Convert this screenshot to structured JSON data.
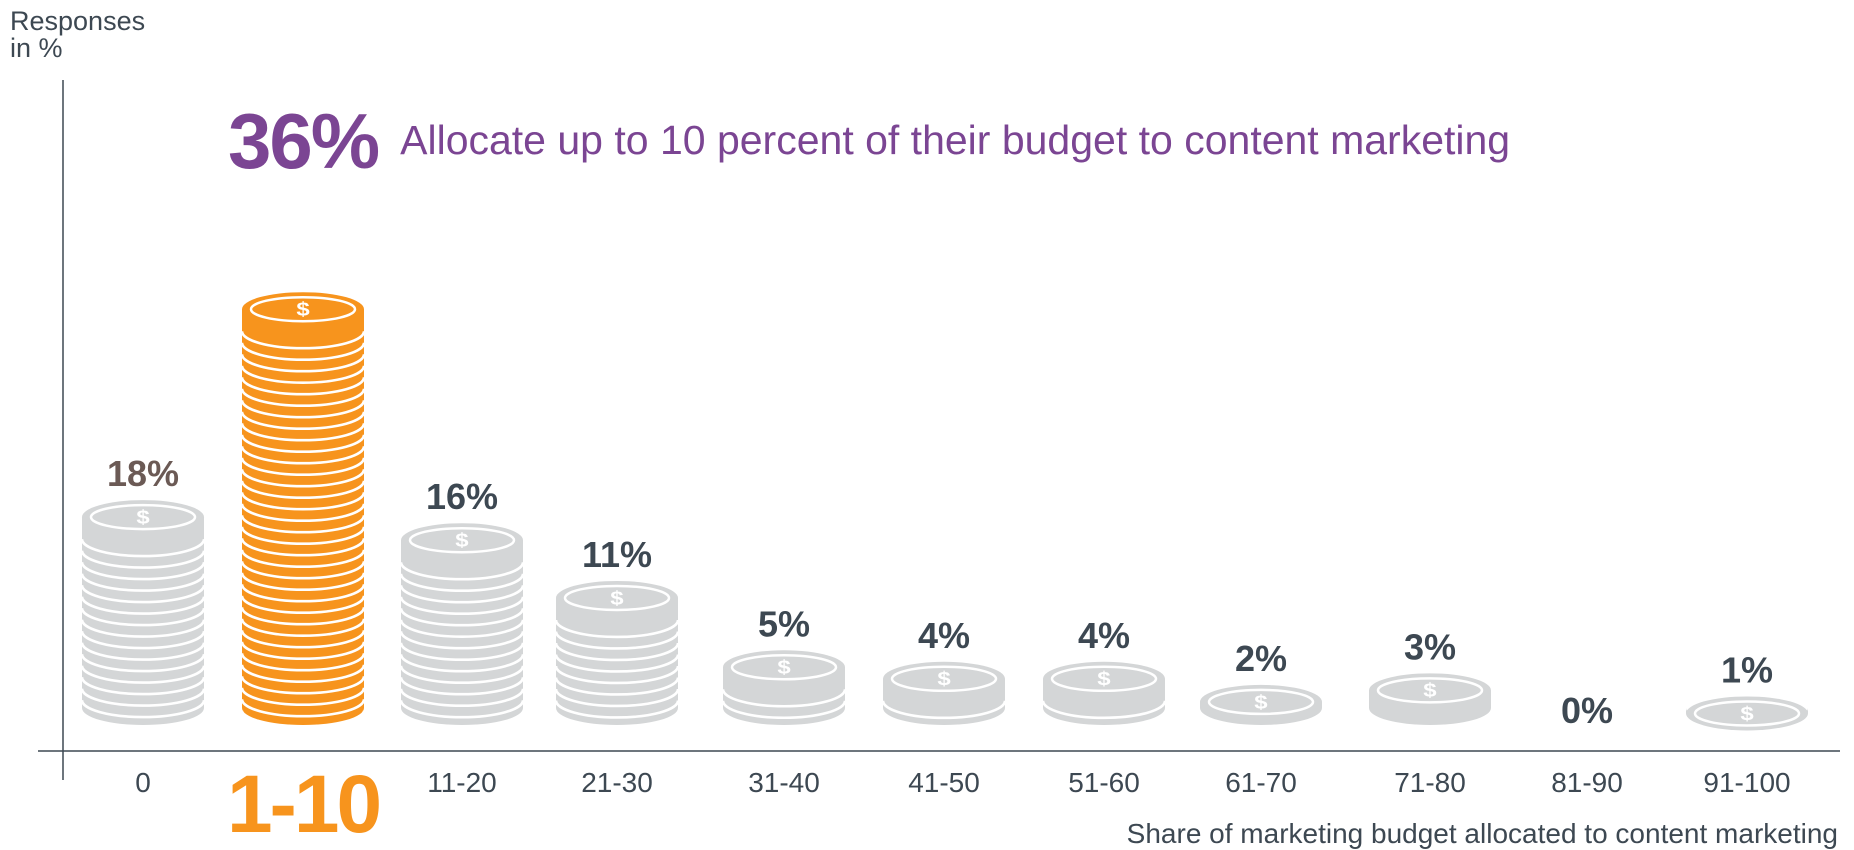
{
  "chart_data": {
    "type": "bar",
    "categories": [
      "0",
      "1-10",
      "11-20",
      "21-30",
      "31-40",
      "41-50",
      "51-60",
      "61-70",
      "71-80",
      "81-90",
      "91-100"
    ],
    "values": [
      18,
      36,
      16,
      11,
      5,
      4,
      4,
      2,
      3,
      0,
      1
    ],
    "value_labels": [
      "18%",
      "36%",
      "16%",
      "11%",
      "5%",
      "4%",
      "4%",
      "2%",
      "3%",
      "0%",
      "1%"
    ],
    "highlight_category": "1-10",
    "ylabel_line1": "Responses",
    "ylabel_line2": "in %",
    "xlabel": "Share of marketing budget allocated to content marketing",
    "headline_value": "36%",
    "headline_text": "Allocate up to 10 percent of their budget to content marketing",
    "colors": {
      "highlight": "#f7941d",
      "coin": "#d4d6d7",
      "label_dark": "#3d4852",
      "label_first": "#6b5a55",
      "accent_purple": "#7b4593",
      "axis": "#3d4852"
    }
  }
}
